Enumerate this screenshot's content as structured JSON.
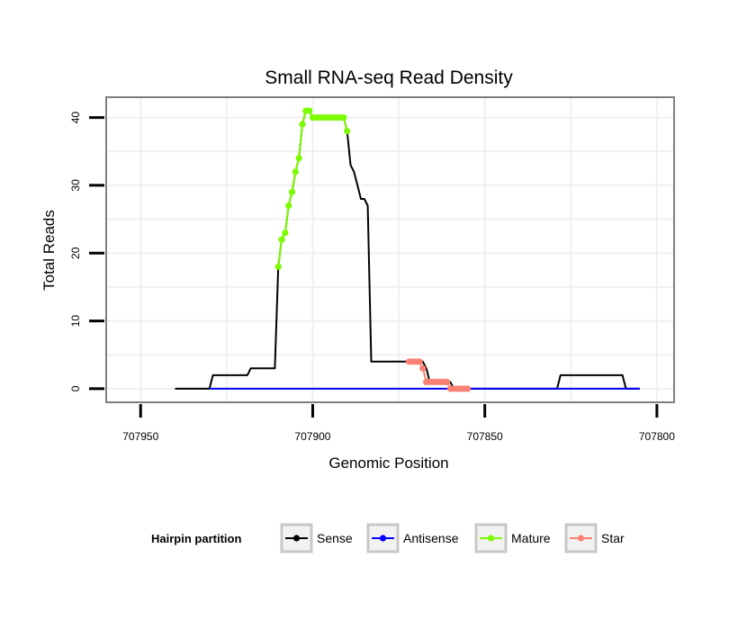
{
  "chart_data": {
    "type": "line",
    "title": "Small RNA-seq Read Density",
    "xlabel": "Genomic Position",
    "ylabel": "Total Reads",
    "x_reversed": true,
    "xlim": [
      707960,
      707795
    ],
    "ylim": [
      -2,
      43
    ],
    "x_ticks": [
      707950,
      707900,
      707850,
      707800
    ],
    "x_tick_labels": [
      "707950",
      "707900",
      "707850",
      "707800"
    ],
    "y_ticks": [
      0,
      10,
      20,
      30,
      40
    ],
    "y_tick_labels": [
      "0",
      "10",
      "20",
      "30",
      "40"
    ],
    "grid": true,
    "legend": {
      "title": "Hairpin partition",
      "position": "bottom",
      "entries": [
        {
          "label": "Sense",
          "color": "#000000"
        },
        {
          "label": "Antisense",
          "color": "#0000ff"
        },
        {
          "label": "Mature",
          "color": "#7cfc00"
        },
        {
          "label": "Star",
          "color": "#fa8072"
        }
      ]
    },
    "series": [
      {
        "name": "Sense",
        "color": "#000000",
        "style": "line",
        "x": [
          707940,
          707930,
          707929,
          707919,
          707918,
          707911,
          707910,
          707909,
          707908,
          707907,
          707906,
          707905,
          707904,
          707903,
          707902,
          707901,
          707900,
          707899,
          707898,
          707897,
          707891,
          707890,
          707889,
          707888,
          707887,
          707886,
          707885,
          707884,
          707883,
          707882,
          707872,
          707871,
          707870,
          707869,
          707868,
          707867,
          707866,
          707865,
          707864,
          707863,
          707862,
          707861,
          707860,
          707859,
          707858,
          707857,
          707856,
          707855,
          707829,
          707828,
          707810,
          707809,
          707805
        ],
        "y": [
          0,
          0,
          2,
          2,
          3,
          3,
          18,
          22,
          23,
          27,
          29,
          32,
          34,
          39,
          41,
          41,
          40,
          40,
          40,
          40,
          40,
          38,
          33,
          32,
          30,
          28,
          28,
          27,
          4,
          4,
          4,
          4,
          4,
          4,
          4,
          3,
          1,
          1,
          1,
          1,
          1,
          1,
          1,
          0,
          0,
          0,
          0,
          0,
          0,
          2,
          2,
          0,
          0
        ]
      },
      {
        "name": "Antisense",
        "color": "#0000ff",
        "style": "line",
        "x": [
          707930,
          707805
        ],
        "y": [
          0,
          0
        ]
      },
      {
        "name": "Mature",
        "color": "#7cfc00",
        "style": "line+points",
        "x": [
          707910,
          707909,
          707908,
          707907,
          707906,
          707905,
          707904,
          707903,
          707902,
          707901,
          707900,
          707899,
          707898,
          707897,
          707896,
          707895,
          707894,
          707893,
          707892,
          707891,
          707890
        ],
        "y": [
          18,
          22,
          23,
          27,
          29,
          32,
          34,
          39,
          41,
          41,
          40,
          40,
          40,
          40,
          40,
          40,
          40,
          40,
          40,
          40,
          38
        ]
      },
      {
        "name": "Star",
        "color": "#fa8072",
        "style": "line+points",
        "x": [
          707872,
          707871,
          707870,
          707869,
          707868,
          707867,
          707866,
          707865,
          707864,
          707863,
          707862,
          707861,
          707860,
          707859,
          707858,
          707857,
          707856,
          707855
        ],
        "y": [
          4,
          4,
          4,
          4,
          3,
          1,
          1,
          1,
          1,
          1,
          1,
          1,
          0,
          0,
          0,
          0,
          0,
          0
        ]
      }
    ]
  }
}
